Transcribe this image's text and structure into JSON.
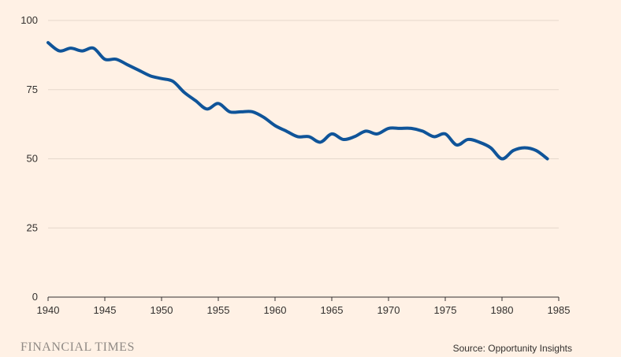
{
  "chart_data": {
    "type": "line",
    "title": "",
    "xlabel": "",
    "ylabel": "",
    "xlim": [
      1940,
      1985
    ],
    "ylim": [
      0,
      100
    ],
    "x_ticks": [
      "1940",
      "1945",
      "1950",
      "1955",
      "1960",
      "1965",
      "1970",
      "1975",
      "1980",
      "1985"
    ],
    "y_ticks": [
      "0",
      "25",
      "50",
      "75",
      "100"
    ],
    "grid": true,
    "series": [
      {
        "name": "",
        "color": "#0f5499",
        "x": [
          1940,
          1941,
          1942,
          1943,
          1944,
          1945,
          1946,
          1947,
          1948,
          1949,
          1950,
          1951,
          1952,
          1953,
          1954,
          1955,
          1956,
          1957,
          1958,
          1959,
          1960,
          1961,
          1962,
          1963,
          1964,
          1965,
          1966,
          1967,
          1968,
          1969,
          1970,
          1971,
          1972,
          1973,
          1974,
          1975,
          1976,
          1977,
          1978,
          1979,
          1980,
          1981,
          1982,
          1983,
          1984
        ],
        "values": [
          92,
          89,
          90,
          89,
          90,
          86,
          86,
          84,
          82,
          80,
          79,
          78,
          74,
          71,
          68,
          70,
          67,
          67,
          67,
          65,
          62,
          60,
          58,
          58,
          56,
          59,
          57,
          58,
          60,
          59,
          61,
          61,
          61,
          60,
          58,
          59,
          55,
          57,
          56,
          54,
          50,
          53,
          54,
          53,
          50
        ]
      }
    ]
  },
  "footer": {
    "brand": "FINANCIAL TIMES",
    "source": "Source: Opportunity Insights"
  }
}
